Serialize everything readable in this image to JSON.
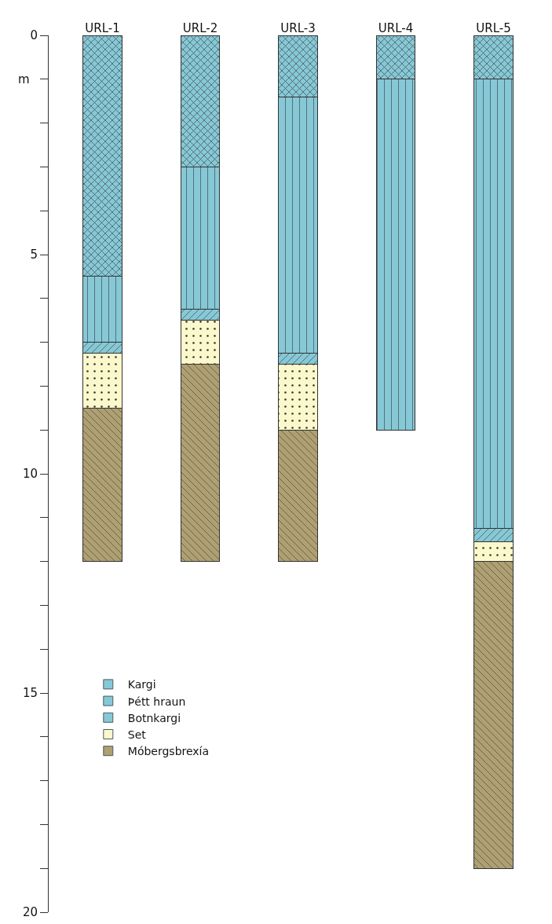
{
  "chart_data": {
    "type": "bar",
    "stacked": true,
    "ylabel": "m",
    "categories": [
      "URL-1",
      "URL-2",
      "URL-3",
      "URL-4",
      "URL-5"
    ],
    "series": [
      {
        "name": "Kargi",
        "color": "#86c8d6",
        "values": [
          5.5,
          3.0,
          1.4,
          1.0,
          1.0
        ]
      },
      {
        "name": "Þétt hraun",
        "color": "#86c8d6",
        "values": [
          1.5,
          3.25,
          5.85,
          8.0,
          10.25
        ]
      },
      {
        "name": "Botnkargi",
        "color": "#86c8d6",
        "values": [
          0.25,
          0.25,
          0.25,
          null,
          0.3
        ]
      },
      {
        "name": "Set",
        "color": "#fbf8cc",
        "values": [
          1.25,
          1.0,
          1.5,
          null,
          0.45
        ]
      },
      {
        "name": "Móbergsbrexía",
        "color": "#b09f6f",
        "values": [
          3.5,
          4.5,
          3.0,
          null,
          7.0
        ]
      }
    ],
    "ylim": [
      20,
      0
    ],
    "yticks": [
      0,
      {
        "value": 1,
        "label": null
      },
      {
        "value": 2,
        "label": null
      },
      {
        "value": 3,
        "label": null
      },
      {
        "value": 4,
        "label": null
      },
      5,
      {
        "value": 6,
        "label": null
      },
      {
        "value": 7,
        "label": null
      },
      {
        "value": 8,
        "label": null
      },
      {
        "value": 9,
        "label": null
      },
      10,
      {
        "value": 11,
        "label": null
      },
      {
        "value": 12,
        "label": null
      },
      {
        "value": 13,
        "label": null
      },
      {
        "value": 14,
        "label": null
      },
      15,
      {
        "value": 16,
        "label": null
      },
      {
        "value": 17,
        "label": null
      },
      {
        "value": 18,
        "label": null
      },
      {
        "value": 19,
        "label": null
      },
      20
    ],
    "legend": "bottom left"
  }
}
